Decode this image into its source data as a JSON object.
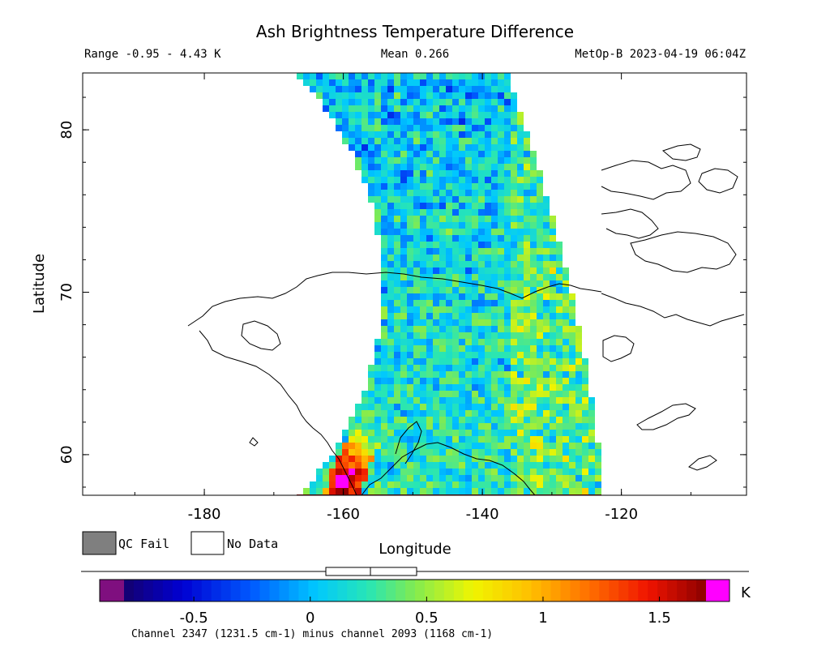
{
  "header": {
    "title": "Ash Brightness Temperature Difference",
    "range": "Range -0.95 - 4.43 K",
    "mean": "Mean 0.266",
    "satellite_time": "MetOp-B 2023-04-19 06:04Z"
  },
  "legend": {
    "qc_fail": "QC Fail",
    "no_data": "No Data",
    "qc_color": "#7f7f7f"
  },
  "colorbar": {
    "unit": "K",
    "caption": "Channel 2347 (1231.5 cm-1) minus channel 2093 (1168 cm-1)",
    "under_color": "#7f0f7f",
    "over_color": "#ff00ff",
    "min": -0.8,
    "max": 1.7,
    "ticks": [
      {
        "value": -0.5,
        "label": "-0.5"
      },
      {
        "value": 0,
        "label": "0"
      },
      {
        "value": 0.5,
        "label": "0.5"
      },
      {
        "value": 1,
        "label": "1"
      },
      {
        "value": 1.5,
        "label": "1.5"
      }
    ]
  },
  "chart_data": {
    "type": "heatmap",
    "title": "Ash Brightness Temperature Difference",
    "xlabel": "Longitude",
    "ylabel": "Latitude",
    "xlim": [
      -197.5,
      -102
    ],
    "ylim": [
      57.5,
      83.5
    ],
    "xticks": [
      {
        "value": -180,
        "label": "-180"
      },
      {
        "value": -160,
        "label": "-160"
      },
      {
        "value": -140,
        "label": "-140"
      },
      {
        "value": -120,
        "label": "-120"
      }
    ],
    "yticks": [
      {
        "value": 60,
        "label": "60"
      },
      {
        "value": 70,
        "label": "70"
      },
      {
        "value": 80,
        "label": "80"
      }
    ],
    "units": "K",
    "range": [
      -0.95,
      4.43
    ],
    "mean": 0.266,
    "colormap": "rainbow (purple-blue-cyan-green-yellow-red-magenta)",
    "hotspot": {
      "lon": -159.5,
      "lat": 58.5,
      "value": 1.8
    }
  }
}
